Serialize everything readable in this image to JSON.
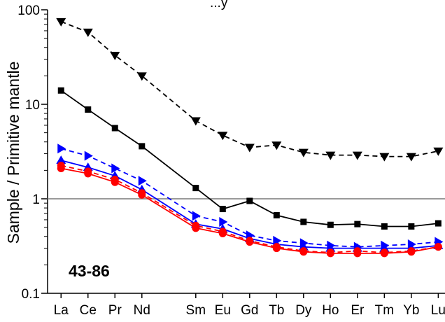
{
  "chart_data": {
    "type": "line",
    "title": "",
    "title_fragment": "...y",
    "ylabel": "Sample / Primitive mantle",
    "xlabel": "",
    "yscale": "log",
    "ylim": [
      0.1,
      100
    ],
    "yticks": [
      0.1,
      1,
      10,
      100
    ],
    "ytick_labels": [
      "0.1",
      "1",
      "10",
      "100"
    ],
    "annotation": "43-86",
    "reference_line": 1,
    "categories": [
      "La",
      "Ce",
      "Pr",
      "Nd",
      "Sm",
      "Eu",
      "Gd",
      "Tb",
      "Dy",
      "Ho",
      "Er",
      "Tm",
      "Yb",
      "Lu"
    ],
    "x_positions": [
      1,
      2,
      3,
      4,
      6,
      7,
      8,
      9,
      10,
      11,
      12,
      13,
      14,
      15
    ],
    "grid": false,
    "legend": "none",
    "series": [
      {
        "style": "dashed",
        "marker": "triangle-down",
        "color": "#000000",
        "values": [
          75,
          58,
          33,
          20,
          6.7,
          4.7,
          3.5,
          3.7,
          3.1,
          2.9,
          2.9,
          2.8,
          2.8,
          3.2
        ]
      },
      {
        "style": "solid",
        "marker": "square",
        "color": "#000000",
        "values": [
          14,
          8.8,
          5.6,
          3.6,
          1.3,
          0.78,
          0.95,
          0.67,
          0.57,
          0.53,
          0.54,
          0.51,
          0.51,
          0.55
        ]
      },
      {
        "style": "dashed",
        "marker": "triangle-right",
        "color": "#0000ff",
        "values": [
          3.4,
          2.85,
          2.1,
          1.55,
          0.66,
          0.57,
          0.41,
          0.36,
          0.34,
          0.32,
          0.31,
          0.32,
          0.33,
          0.35
        ]
      },
      {
        "style": "solid",
        "marker": "triangle-up",
        "color": "#0000ff",
        "values": [
          2.55,
          2.15,
          1.75,
          1.25,
          0.54,
          0.48,
          0.38,
          0.33,
          0.31,
          0.3,
          0.3,
          0.3,
          0.3,
          0.32
        ]
      },
      {
        "style": "dashed",
        "marker": "circle",
        "color": "#ff0000",
        "values": [
          2.25,
          1.95,
          1.6,
          1.15,
          0.52,
          0.45,
          0.36,
          0.31,
          0.28,
          0.27,
          0.28,
          0.27,
          0.28,
          0.31
        ]
      },
      {
        "style": "solid",
        "marker": "circle",
        "color": "#ff0000",
        "values": [
          2.1,
          1.85,
          1.5,
          1.1,
          0.49,
          0.43,
          0.35,
          0.3,
          0.275,
          0.265,
          0.265,
          0.265,
          0.275,
          0.31
        ]
      }
    ]
  }
}
